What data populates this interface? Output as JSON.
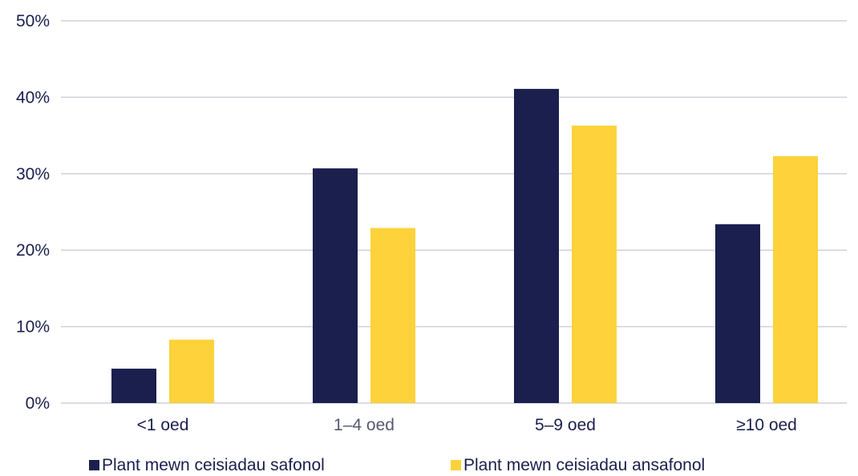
{
  "chart_data": {
    "type": "bar",
    "categories": [
      "<1 oed",
      "1–4 oed",
      "5–9 oed",
      "≥10 oed"
    ],
    "series": [
      {
        "name": "Plant mewn ceisiadau safonol",
        "color": "#1a1f4e",
        "values": [
          4.5,
          30.7,
          41.1,
          23.4
        ]
      },
      {
        "name": "Plant mewn ceisiadau ansafonol",
        "color": "#fdd23b",
        "values": [
          8.3,
          22.9,
          36.3,
          32.3
        ]
      }
    ],
    "ylim": [
      0,
      50
    ],
    "yticks": [
      "0%",
      "10%",
      "20%",
      "30%",
      "40%",
      "50%"
    ],
    "grid": true,
    "gridColor": "#cfd1dc",
    "legend_position": "bottom",
    "title": "",
    "xlabel": "",
    "ylabel": ""
  }
}
